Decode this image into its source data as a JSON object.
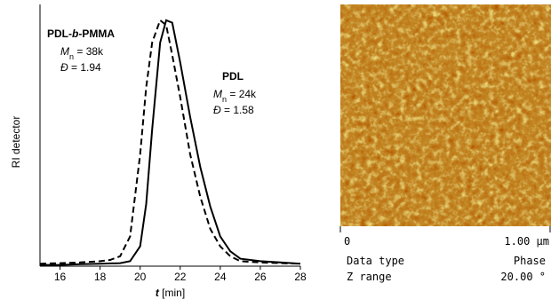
{
  "chart_data": {
    "type": "line",
    "x_label": [
      {
        "text": "t",
        "italic": true,
        "bold": true
      },
      {
        "text": " [min]"
      }
    ],
    "y_label": "RI detector",
    "x": [
      15,
      16,
      17,
      18,
      18.5,
      19,
      19.5,
      20,
      20.3,
      20.6,
      21,
      21.3,
      21.6,
      22,
      22.5,
      23,
      23.5,
      24,
      24.5,
      25,
      26,
      27,
      28
    ],
    "series": [
      {
        "name": "PDL-b-PMMA",
        "color": "#000000",
        "dashed": true,
        "values": [
          0.01,
          0.012,
          0.015,
          0.02,
          0.025,
          0.04,
          0.12,
          0.45,
          0.72,
          0.9,
          0.99,
          0.97,
          0.85,
          0.68,
          0.45,
          0.28,
          0.15,
          0.08,
          0.04,
          0.02,
          0.015,
          0.012,
          0.01
        ]
      },
      {
        "name": "PDL",
        "color": "#000000",
        "dashed": false,
        "values": [
          0.005,
          0.005,
          0.008,
          0.01,
          0.011,
          0.012,
          0.02,
          0.08,
          0.25,
          0.55,
          0.9,
          0.99,
          0.98,
          0.82,
          0.6,
          0.4,
          0.24,
          0.12,
          0.06,
          0.03,
          0.02,
          0.015,
          0.01
        ]
      }
    ],
    "xlim": [
      15,
      28
    ],
    "xticks": [
      16,
      18,
      20,
      22,
      24,
      26,
      28
    ],
    "ylim": [
      0,
      1
    ],
    "annotations": [
      {
        "bold": true,
        "parts": [
          {
            "text": "PDL-"
          },
          {
            "text": "b",
            "italic": true
          },
          {
            "text": "-PMMA"
          }
        ]
      },
      {
        "parts": [
          {
            "text": "M",
            "italic": true
          },
          {
            "text": "n",
            "sub": true
          },
          {
            "text": " = 38k"
          }
        ]
      },
      {
        "parts": [
          {
            "text": "Đ",
            "italic": true
          },
          {
            "text": " = 1.94"
          }
        ]
      },
      {
        "bold": true,
        "parts": [
          {
            "text": "PDL"
          }
        ]
      },
      {
        "parts": [
          {
            "text": "M",
            "italic": true
          },
          {
            "text": "n",
            "sub": true
          },
          {
            "text": " = 24k"
          }
        ]
      },
      {
        "parts": [
          {
            "text": "Đ",
            "italic": true
          },
          {
            "text": " = 1.58"
          }
        ]
      }
    ]
  },
  "afm_image": {
    "scale_start": "0",
    "scale_end": "1.00 µm",
    "rows": [
      [
        "Data type",
        "Phase"
      ],
      [
        "Z range",
        "20.00 °"
      ]
    ]
  }
}
